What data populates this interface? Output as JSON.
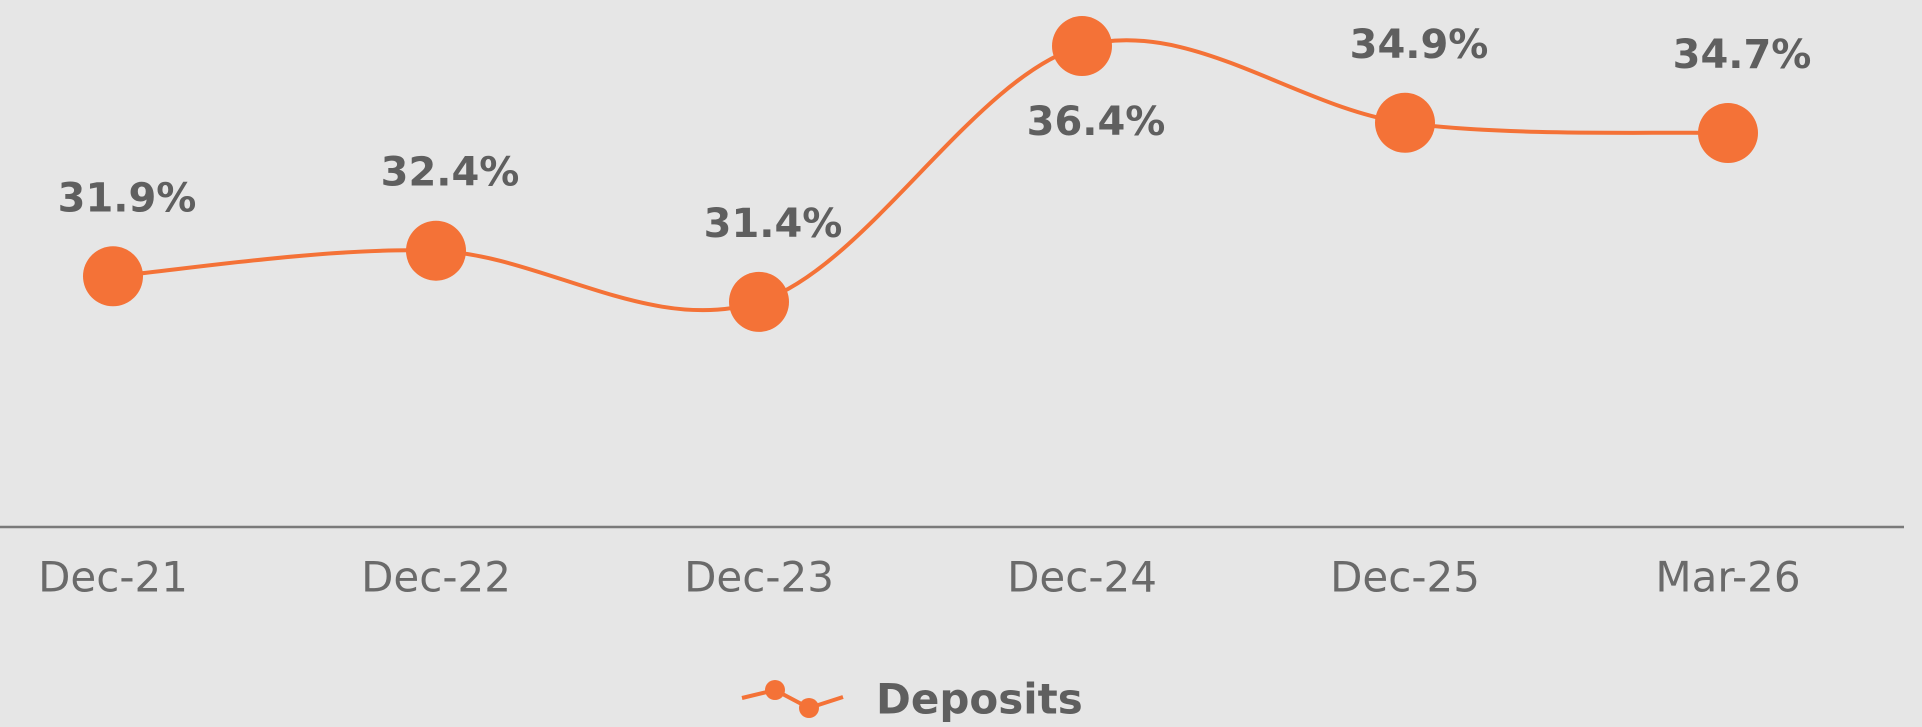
{
  "chart_data": {
    "type": "line",
    "categories": [
      "Dec-21",
      "Dec-22",
      "Dec-23",
      "Dec-24",
      "Dec-25",
      "Mar-26"
    ],
    "series": [
      {
        "name": "Deposits",
        "color": "#f47237",
        "values": [
          31.9,
          32.4,
          31.4,
          36.4,
          34.9,
          34.7
        ],
        "value_labels": [
          "31.9%",
          "32.4%",
          "31.4%",
          "36.4%",
          "34.9%",
          "34.7%"
        ]
      }
    ],
    "ylim": [
      27,
      37.3
    ],
    "grid": false,
    "legend": "bottom"
  }
}
